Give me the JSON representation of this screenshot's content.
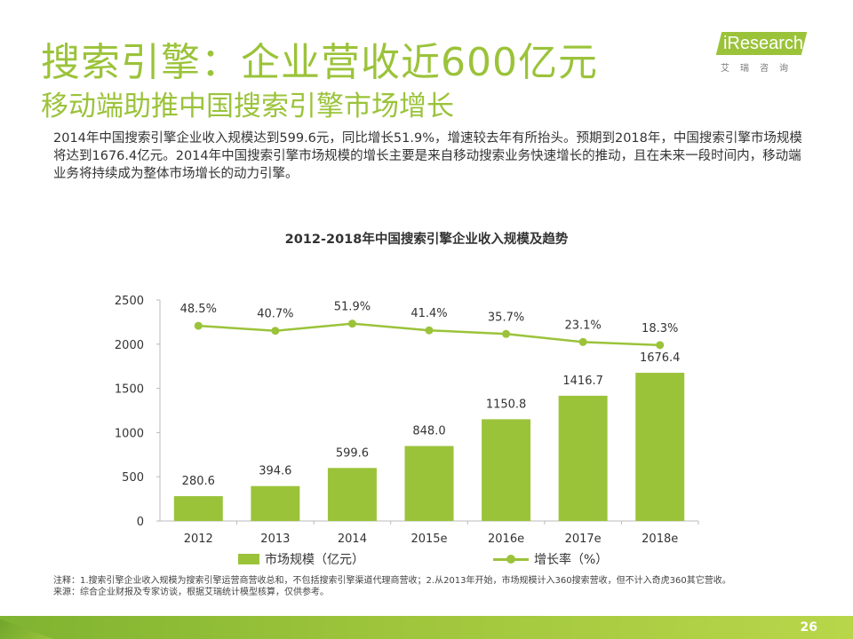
{
  "slide": {
    "title_main": "搜索引擎：企业营收近600亿元",
    "title_sub": "移动端助推中国搜索引擎市场增长",
    "intro": "2014年中国搜索引擎企业收入规模达到599.6元，同比增长51.9%，增速较去年有所抬头。预期到2018年，中国搜索引擎市场规模将达到1676.4亿元。2014年中国搜索引擎市场规模的增长主要是来自移动搜索业务快速增长的推动，且在未来一段时间内，移动端业务将持续成为整体市场增长的动力引擎。",
    "notes_line1": "注释：1.搜索引擎企业收入规模为搜索引擎运营商营收总和，不包括搜索引擎渠道代理商营收；2.从2013年开始，市场规模计入360搜索营收，但不计入奇虎360其它营收。",
    "notes_line2": "来源：综合企业财报及专家访谈，根据艾瑞统计模型核算，仅供参考。",
    "page_number": "26"
  },
  "logo": {
    "text": "iResearch",
    "cn": "艾瑞咨询"
  },
  "colors": {
    "accent": "#9bc33a",
    "text": "#333333"
  },
  "chart_data": {
    "type": "bar",
    "title": "2012-2018年中国搜索引擎企业收入规模及趋势",
    "categories": [
      "2012",
      "2013",
      "2014",
      "2015e",
      "2016e",
      "2017e",
      "2018e"
    ],
    "series": [
      {
        "name": "市场规模（亿元）",
        "type": "bar",
        "values": [
          280.6,
          394.6,
          599.6,
          848.0,
          1150.8,
          1416.7,
          1676.4
        ],
        "labels": [
          "280.6",
          "394.6",
          "599.6",
          "848.0",
          "1150.8",
          "1416.7",
          "1676.4"
        ]
      },
      {
        "name": "增长率（%）",
        "type": "line",
        "values": [
          48.5,
          40.7,
          51.9,
          41.4,
          35.7,
          23.1,
          18.3
        ],
        "labels": [
          "48.5%",
          "40.7%",
          "51.9%",
          "41.4%",
          "35.7%",
          "23.1%",
          "18.3%"
        ]
      }
    ],
    "yticks": [
      "0",
      "500",
      "1000",
      "1500",
      "2000",
      "2500"
    ],
    "ylim": [
      0,
      2500
    ],
    "legend_position": "bottom"
  }
}
